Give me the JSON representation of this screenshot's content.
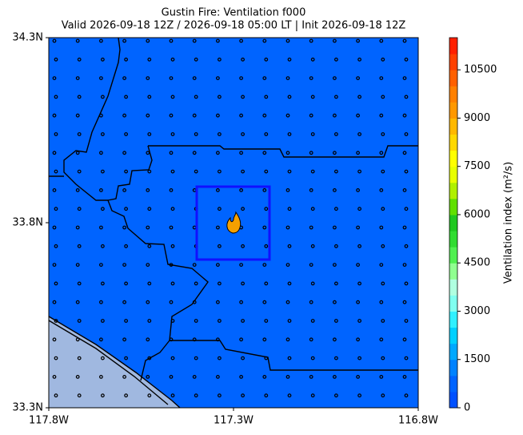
{
  "chart_data": {
    "type": "map",
    "title": "Gustin Fire: Ventilation f000",
    "subtitle": "Valid 2026-09-18 12Z / 2026-09-18 05:00 LT | Init 2026-09-18 12Z",
    "xlim": [
      -117.8,
      -116.8
    ],
    "xticks": [
      {
        "value": -117.8,
        "label": "117.8W"
      },
      {
        "value": -117.3,
        "label": "117.3W"
      },
      {
        "value": -116.8,
        "label": "116.8W"
      }
    ],
    "ylim": [
      33.3,
      34.3
    ],
    "yticks": [
      {
        "value": 33.3,
        "label": "33.3N"
      },
      {
        "value": 33.8,
        "label": "33.8N"
      },
      {
        "value": 34.3,
        "label": "34.3N"
      }
    ],
    "fill_color": "#0064ff",
    "colorbar": {
      "label": "Ventilation index (m²/s)",
      "vlim": [
        0,
        11500
      ],
      "ticks": [
        0,
        1500,
        3000,
        4500,
        6000,
        7500,
        9000,
        10500
      ],
      "colors": [
        "#0050ff",
        "#0064ff",
        "#0082ff",
        "#00a8ff",
        "#00d0ff",
        "#30f0ff",
        "#80fff0",
        "#b0ffe0",
        "#90ff90",
        "#50f050",
        "#30dc30",
        "#20c820",
        "#60e000",
        "#b0f000",
        "#e8ff00",
        "#ffff00",
        "#ffd800",
        "#ffb800",
        "#ff9800",
        "#ff8000",
        "#ff6000",
        "#ff4000",
        "#ff2000"
      ]
    }
  }
}
